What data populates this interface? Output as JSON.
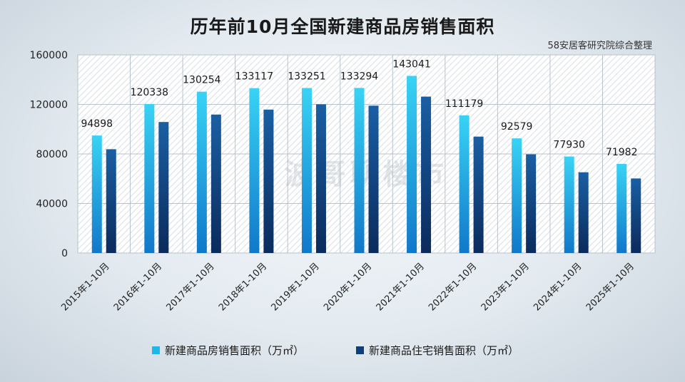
{
  "title": "历年前10月全国新建商品房销售面积",
  "source": "58安居客研究院综合整理",
  "watermark": "波哥聊楼市",
  "colors": {
    "series1_light": "#39d3f5",
    "series1_dark": "#1178c9",
    "series2_light": "#1a5fa3",
    "series2_dark": "#0b2b5c",
    "grid": "#b8c2cc",
    "axis_text": "#222222"
  },
  "chart_data": {
    "type": "bar",
    "categories": [
      "2015年1-10月",
      "2016年1-10月",
      "2017年1-10月",
      "2018年1-10月",
      "2019年1-10月",
      "2020年1-10月",
      "2021年1-10月",
      "2022年1-10月",
      "2023年1-10月",
      "2024年1-10月",
      "2025年1-10月"
    ],
    "series": [
      {
        "name": "新建商品房销售面积（万㎡）",
        "values": [
          94898,
          120338,
          130254,
          133117,
          133251,
          133294,
          143041,
          111179,
          92579,
          77930,
          71982
        ],
        "labels": [
          "94898",
          "120338",
          "130254",
          "133117",
          "133251",
          "133294",
          "143041",
          "111179",
          "92579",
          "77930",
          "71982"
        ]
      },
      {
        "name": "新建商品住宅销售面积（万㎡）",
        "values": [
          83800,
          105800,
          111800,
          115800,
          120100,
          119000,
          126300,
          94000,
          79700,
          65200,
          60200
        ]
      }
    ],
    "ylim": [
      0,
      160000
    ],
    "yticks": [
      "0",
      "40000",
      "80000",
      "120000",
      "160000"
    ],
    "ytick_values": [
      0,
      40000,
      80000,
      120000,
      160000
    ],
    "grid": true,
    "legend": "bottom"
  }
}
